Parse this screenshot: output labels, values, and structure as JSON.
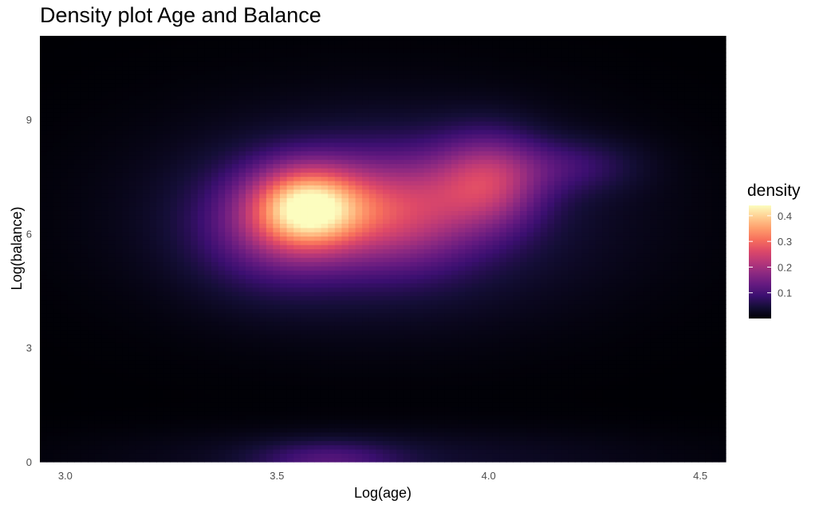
{
  "chart_data": {
    "type": "heatmap",
    "title": "Density plot Age and Balance",
    "xlabel": "Log(age)",
    "ylabel": "Log(balance)",
    "xlim": [
      2.94,
      4.56
    ],
    "ylim": [
      0,
      11.2
    ],
    "x_ticks": [
      3.0,
      3.5,
      4.0,
      4.5
    ],
    "x_tick_labels": [
      "3.0",
      "3.5",
      "4.0",
      "4.5"
    ],
    "y_ticks": [
      0,
      3,
      6,
      9
    ],
    "y_tick_labels": [
      "0",
      "3",
      "6",
      "9"
    ],
    "grid": false,
    "legend": {
      "title": "density",
      "placement": "right",
      "breaks": [
        0.1,
        0.2,
        0.3,
        0.4
      ],
      "break_labels": [
        "0.1",
        "0.2",
        "0.3",
        "0.4"
      ],
      "range": [
        0.0,
        0.44
      ]
    },
    "colormap": "magma",
    "density_components": [
      {
        "x": 3.57,
        "y": 6.7,
        "sx": 0.09,
        "sy": 0.75,
        "weight": 0.3
      },
      {
        "x": 3.49,
        "y": 6.2,
        "sx": 0.13,
        "sy": 1.1,
        "weight": 0.1
      },
      {
        "x": 3.78,
        "y": 6.6,
        "sx": 0.13,
        "sy": 1.0,
        "weight": 0.17
      },
      {
        "x": 4.0,
        "y": 7.4,
        "sx": 0.09,
        "sy": 0.85,
        "weight": 0.17
      },
      {
        "x": 3.75,
        "y": 6.5,
        "sx": 0.36,
        "sy": 1.8,
        "weight": 0.08
      },
      {
        "x": 4.2,
        "y": 7.8,
        "sx": 0.11,
        "sy": 0.5,
        "weight": 0.06
      },
      {
        "x": 3.62,
        "y": 0.05,
        "sx": 0.12,
        "sy": 0.35,
        "weight": 0.08
      },
      {
        "x": 3.75,
        "y": 0.1,
        "sx": 0.45,
        "sy": 0.55,
        "weight": 0.035
      }
    ]
  }
}
